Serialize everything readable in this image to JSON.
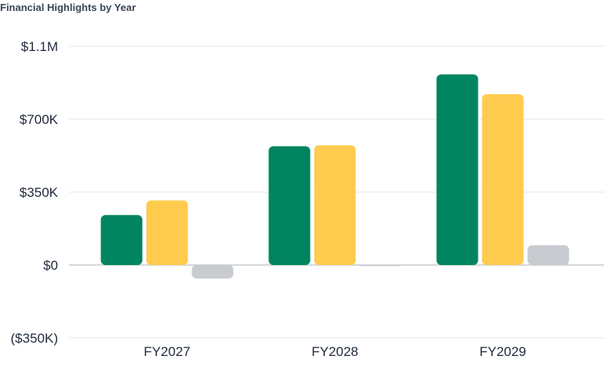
{
  "chart_data": {
    "type": "bar",
    "title": "Financial Highlights by Year",
    "categories": [
      "FY2027",
      "FY2028",
      "FY2029"
    ],
    "series": [
      {
        "values": [
          240000,
          570000,
          915000
        ],
        "color": "#008560"
      },
      {
        "values": [
          310000,
          575000,
          820000
        ],
        "color": "#ffcb4f"
      },
      {
        "values": [
          -65000,
          -5000,
          95000
        ],
        "color": "#c8cbcf"
      }
    ],
    "ylim": [
      -350000,
      1050000
    ],
    "yticks": [
      {
        "value": 1050000,
        "label": "$1.1M"
      },
      {
        "value": 700000,
        "label": "$700K"
      },
      {
        "value": 350000,
        "label": "$350K"
      },
      {
        "value": 0,
        "label": "$0"
      },
      {
        "value": -350000,
        "label": "($350K)"
      }
    ],
    "grid": true,
    "gridColor": "#e4e6ea",
    "zeroLineColor": "#c9ccd1",
    "textColor": "#1f2a3a",
    "titleColor": "#3a4556"
  }
}
